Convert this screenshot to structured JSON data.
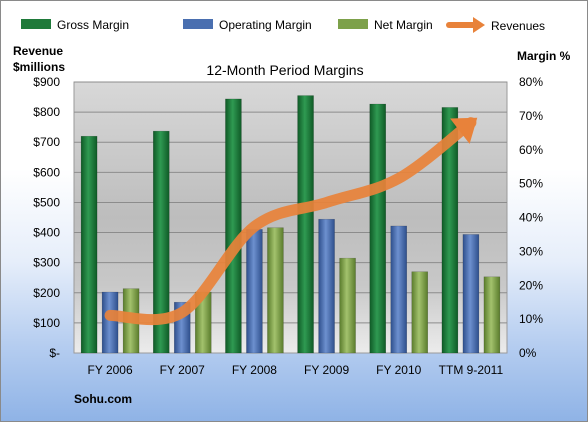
{
  "chart_data": {
    "type": "bar",
    "title": "12-Month Period Margins",
    "categories": [
      "FY 2006",
      "FY 2007",
      "FY 2008",
      "FY 2009",
      "FY 2010",
      "TTM 9-2011"
    ],
    "series": [
      {
        "name": "Gross Margin",
        "axis": "right",
        "values": [
          64,
          65.5,
          75,
          76,
          73.5,
          72.5
        ],
        "color": "#1f7a3a"
      },
      {
        "name": "Operating Margin",
        "axis": "right",
        "values": [
          18,
          15,
          36.5,
          39.5,
          37.5,
          35
        ],
        "color": "#4a6fb0"
      },
      {
        "name": "Net Margin",
        "axis": "right",
        "values": [
          19,
          18,
          37,
          28,
          24,
          22.5
        ],
        "color": "#7da14a"
      },
      {
        "name": "Revenues",
        "axis": "left",
        "type": "line",
        "values": [
          125,
          135,
          420,
          500,
          580,
          765
        ],
        "color": "#e8823a"
      }
    ],
    "y_left": {
      "label": "Revenue\n$millions",
      "lim": [
        0,
        900
      ],
      "ticks": [
        "$-",
        "$100",
        "$200",
        "$300",
        "$400",
        "$500",
        "$600",
        "$700",
        "$800",
        "$900"
      ]
    },
    "y_right": {
      "label": "Margin %",
      "lim": [
        0,
        80
      ],
      "ticks": [
        "0%",
        "10%",
        "20%",
        "30%",
        "40%",
        "50%",
        "60%",
        "70%",
        "80%"
      ]
    },
    "legend_position": "top",
    "grid": true,
    "source": "Sohu.com"
  }
}
